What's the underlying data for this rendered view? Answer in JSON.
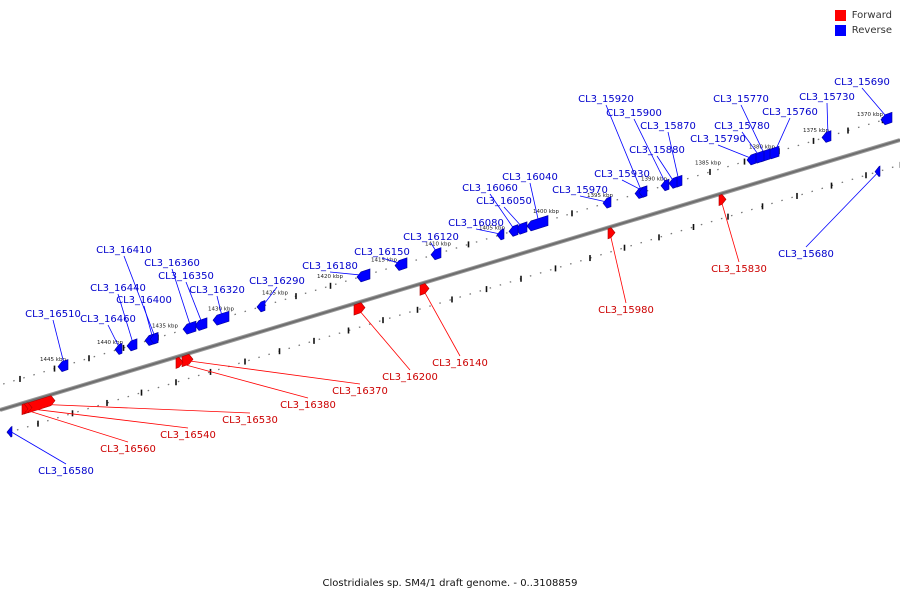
{
  "legend": {
    "forward_label": "Forward",
    "reverse_label": "Reverse",
    "forward_color": "#ff0000",
    "reverse_color": "#0000ff"
  },
  "caption": "Clostridiales sp. SM4/1 draft genome. - 0..3108859",
  "ruler": {
    "ticks": [
      "1370 kbp",
      "1375 kbp",
      "1380 kbp",
      "1385 kbp",
      "1390 kbp",
      "1395 kbp",
      "1400 kbp",
      "1405 kbp",
      "1410 kbp",
      "1415 kbp",
      "1420 kbp",
      "1425 kbp",
      "1430 kbp",
      "1435 kbp",
      "1440 kbp",
      "1445 kbp"
    ]
  },
  "genes": {
    "reverse": [
      "CL3_15690",
      "CL3_15730",
      "CL3_15760",
      "CL3_15770",
      "CL3_15780",
      "CL3_15790",
      "CL3_15870",
      "CL3_15880",
      "CL3_15900",
      "CL3_15920",
      "CL3_15930",
      "CL3_15970",
      "CL3_16040",
      "CL3_16050",
      "CL3_16060",
      "CL3_16080",
      "CL3_16120",
      "CL3_16150",
      "CL3_16180",
      "CL3_16290",
      "CL3_16320",
      "CL3_16350",
      "CL3_16360",
      "CL3_16400",
      "CL3_16410",
      "CL3_16440",
      "CL3_16460",
      "CL3_16510",
      "CL3_15680",
      "CL3_16580"
    ],
    "forward": [
      "CL3_15830",
      "CL3_15980",
      "CL3_16140",
      "CL3_16200",
      "CL3_16370",
      "CL3_16380",
      "CL3_16530",
      "CL3_16540",
      "CL3_16560"
    ]
  }
}
